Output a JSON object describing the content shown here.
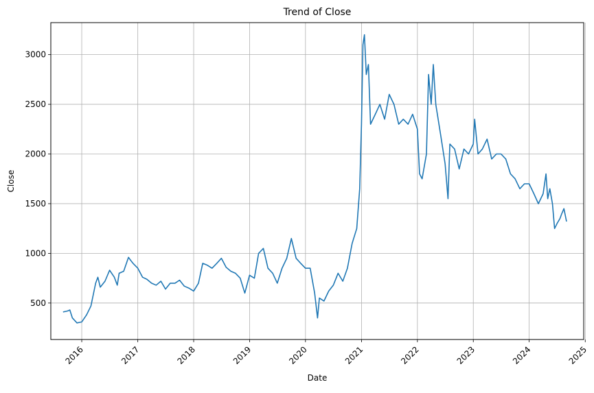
{
  "chart_data": {
    "type": "line",
    "title": "Trend of Close",
    "xlabel": "Date",
    "ylabel": "Close",
    "grid": true,
    "line_color": "#1f77b4",
    "x_ticks": [
      "2016",
      "2017",
      "2018",
      "2019",
      "2020",
      "2021",
      "2022",
      "2023",
      "2024",
      "2025"
    ],
    "y_ticks": [
      500,
      1000,
      1500,
      2000,
      2500,
      3000
    ],
    "xlim": [
      "2015-06-13",
      "2024-12-22"
    ],
    "ylim": [
      133,
      3322
    ],
    "series": [
      {
        "x": [
          "2015-09-01",
          "2015-10-01",
          "2015-10-15",
          "2015-11-01",
          "2015-12-01",
          "2016-01-01",
          "2016-02-01",
          "2016-03-01",
          "2016-04-01",
          "2016-04-15",
          "2016-05-01",
          "2016-06-01",
          "2016-07-01",
          "2016-08-01",
          "2016-08-20",
          "2016-09-01",
          "2016-10-01",
          "2016-11-01",
          "2016-11-15",
          "2016-12-01",
          "2017-01-01",
          "2017-02-01",
          "2017-03-01",
          "2017-04-01",
          "2017-05-01",
          "2017-06-01",
          "2017-07-01",
          "2017-08-01",
          "2017-09-01",
          "2017-10-01",
          "2017-11-01",
          "2017-12-01",
          "2018-01-01",
          "2018-02-01",
          "2018-03-01",
          "2018-04-01",
          "2018-05-01",
          "2018-06-01",
          "2018-07-01",
          "2018-08-01",
          "2018-09-01",
          "2018-10-01",
          "2018-11-01",
          "2018-12-01",
          "2019-01-01",
          "2019-02-01",
          "2019-03-01",
          "2019-04-01",
          "2019-05-01",
          "2019-06-01",
          "2019-07-01",
          "2019-08-01",
          "2019-09-01",
          "2019-10-01",
          "2019-11-01",
          "2019-12-01",
          "2020-01-01",
          "2020-02-01",
          "2020-03-01",
          "2020-03-20",
          "2020-04-01",
          "2020-05-01",
          "2020-06-01",
          "2020-07-01",
          "2020-08-01",
          "2020-09-01",
          "2020-10-01",
          "2020-11-01",
          "2020-12-01",
          "2020-12-20",
          "2021-01-01",
          "2021-01-10",
          "2021-01-20",
          "2021-02-01",
          "2021-02-15",
          "2021-03-01",
          "2021-04-01",
          "2021-05-01",
          "2021-06-01",
          "2021-07-01",
          "2021-08-01",
          "2021-09-01",
          "2021-10-01",
          "2021-11-01",
          "2021-12-01",
          "2022-01-01",
          "2022-01-15",
          "2022-02-01",
          "2022-03-01",
          "2022-03-15",
          "2022-04-01",
          "2022-04-15",
          "2022-05-01",
          "2022-06-01",
          "2022-07-01",
          "2022-07-20",
          "2022-08-01",
          "2022-09-01",
          "2022-10-01",
          "2022-11-01",
          "2022-12-01",
          "2023-01-01",
          "2023-01-10",
          "2023-02-01",
          "2023-03-01",
          "2023-04-01",
          "2023-05-01",
          "2023-06-01",
          "2023-07-01",
          "2023-08-01",
          "2023-09-01",
          "2023-10-01",
          "2023-11-01",
          "2023-12-01",
          "2024-01-01",
          "2024-02-01",
          "2024-03-01",
          "2024-04-01",
          "2024-04-20",
          "2024-05-01",
          "2024-05-15",
          "2024-06-01",
          "2024-06-15",
          "2024-07-01",
          "2024-07-20",
          "2024-08-01",
          "2024-08-15",
          "2024-09-01"
        ],
        "y": [
          410,
          420,
          430,
          350,
          300,
          310,
          380,
          470,
          700,
          760,
          660,
          720,
          830,
          760,
          680,
          800,
          820,
          960,
          930,
          900,
          850,
          760,
          740,
          700,
          680,
          720,
          640,
          700,
          700,
          730,
          670,
          650,
          620,
          700,
          900,
          880,
          850,
          900,
          950,
          860,
          820,
          800,
          750,
          600,
          780,
          750,
          1000,
          1050,
          850,
          800,
          700,
          850,
          950,
          1150,
          950,
          900,
          850,
          850,
          600,
          350,
          550,
          520,
          620,
          680,
          800,
          720,
          850,
          1100,
          1250,
          1650,
          2300,
          3100,
          3200,
          2800,
          2900,
          2300,
          2400,
          2500,
          2350,
          2600,
          2500,
          2300,
          2350,
          2300,
          2400,
          2250,
          1800,
          1750,
          2000,
          2800,
          2500,
          2900,
          2500,
          2200,
          1900,
          1550,
          2100,
          2050,
          1850,
          2050,
          2000,
          2100,
          2350,
          2000,
          2050,
          2150,
          1950,
          2000,
          2000,
          1950,
          1800,
          1750,
          1650,
          1700,
          1700,
          1600,
          1500,
          1600,
          1800,
          1550,
          1650,
          1500,
          1250,
          1300,
          1350,
          1400,
          1450,
          1320
        ]
      }
    ]
  }
}
